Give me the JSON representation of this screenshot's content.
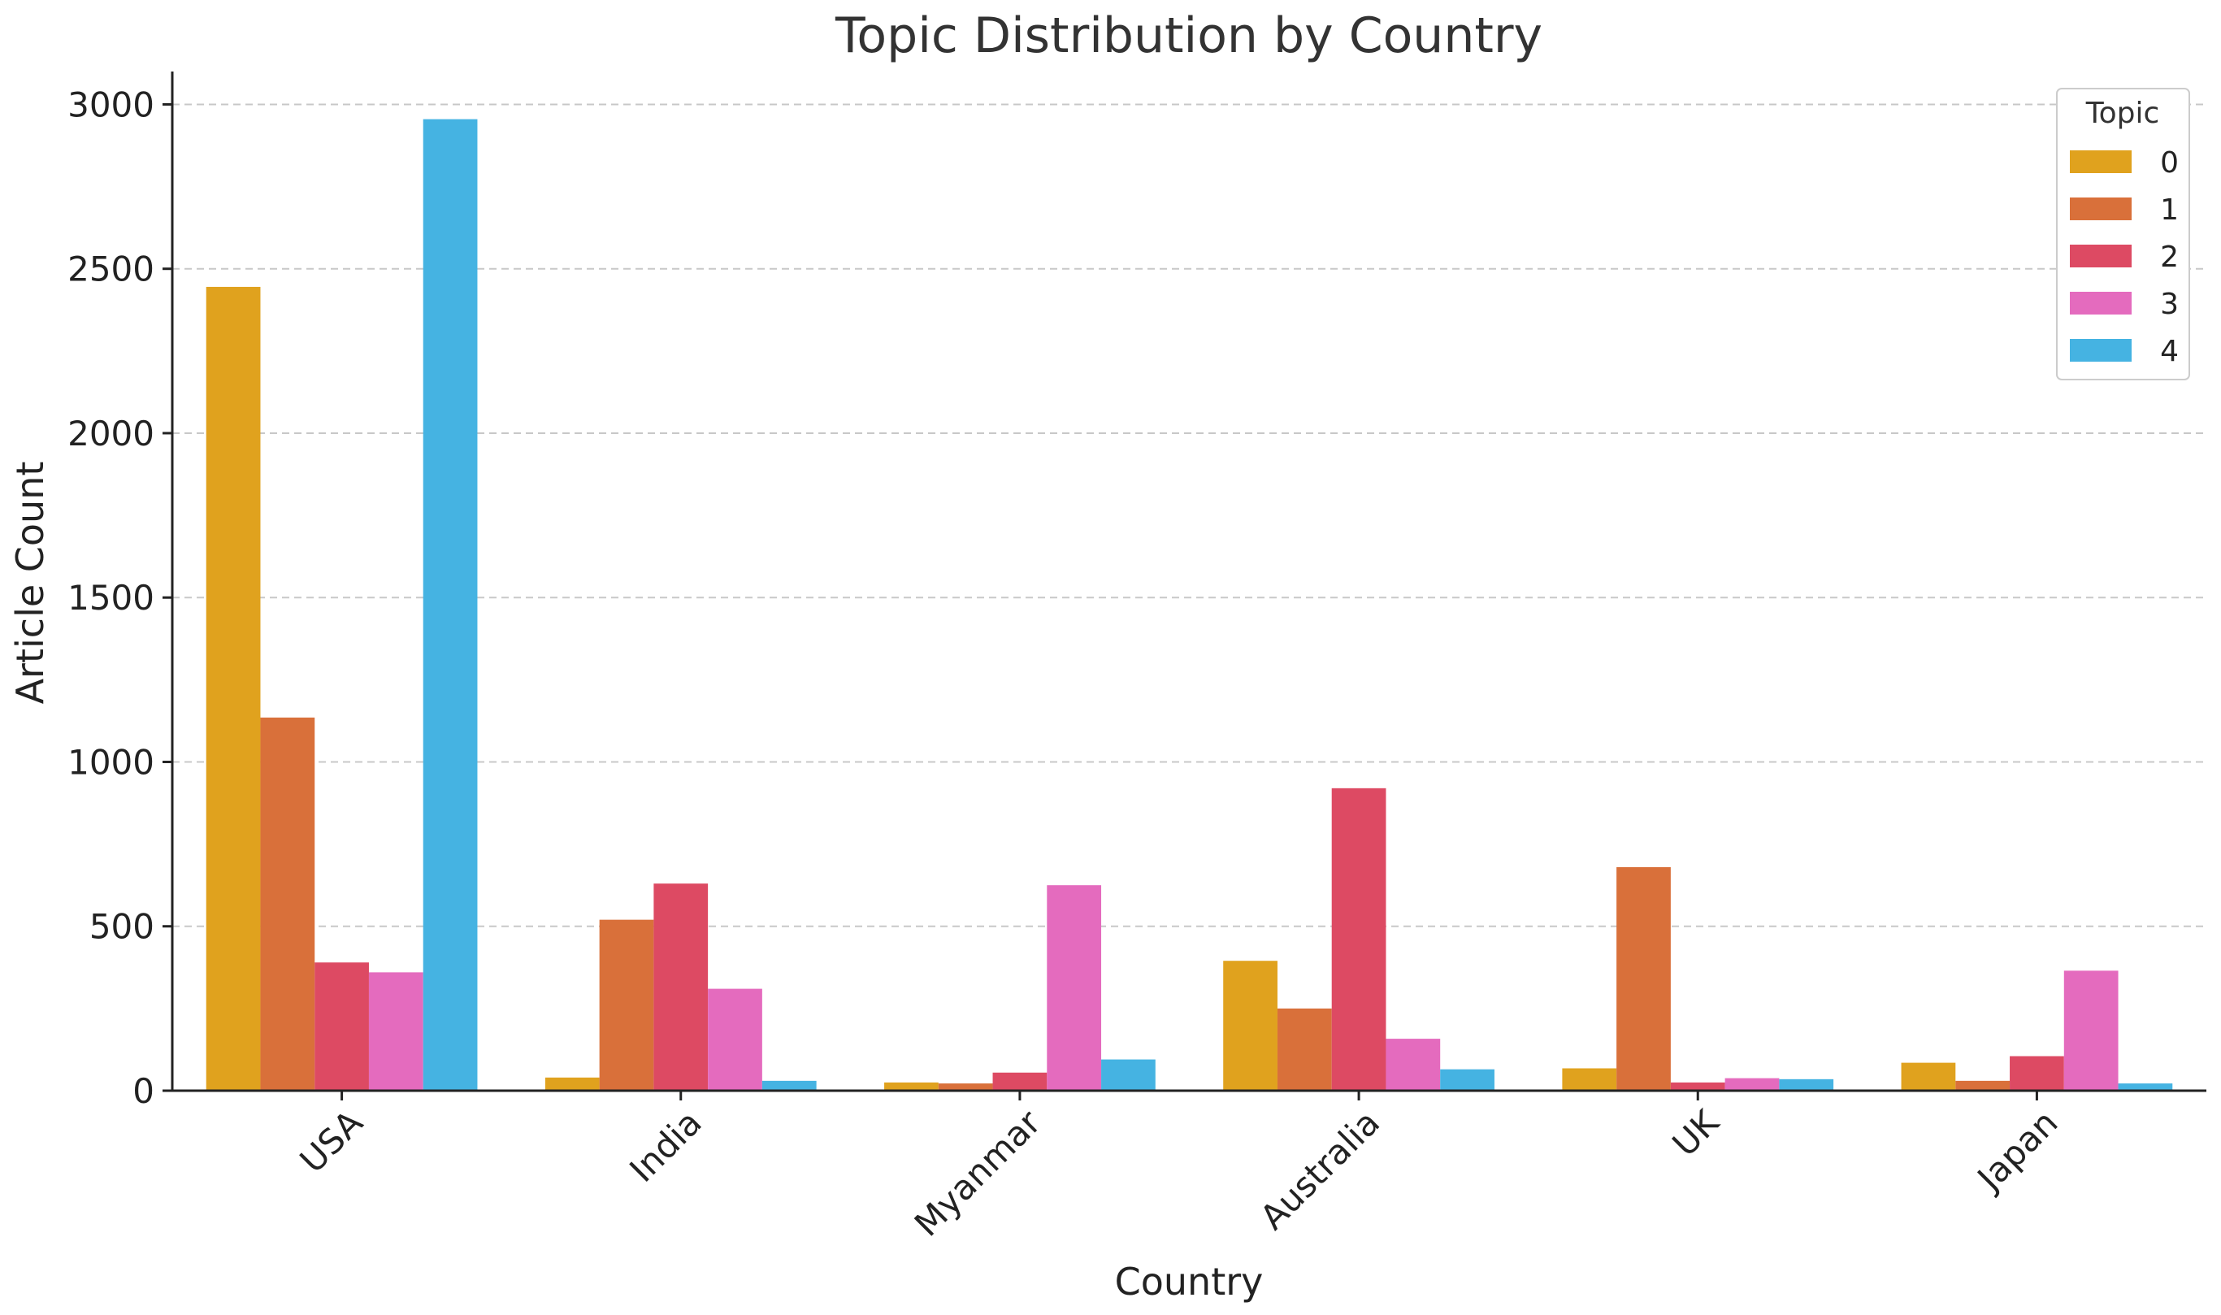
{
  "chart_data": {
    "type": "bar",
    "title": "Topic Distribution by Country",
    "xlabel": "Country",
    "ylabel": "Article Count",
    "categories": [
      "USA",
      "India",
      "Myanmar",
      "Australia",
      "UK",
      "Japan"
    ],
    "ylim": [
      0,
      3100
    ],
    "yticks": [
      0,
      500,
      1000,
      1500,
      2000,
      2500,
      3000
    ],
    "grid": true,
    "legend": {
      "title": "Topic",
      "placement": "top-right"
    },
    "series": [
      {
        "name": "0",
        "color": "#E0A21E",
        "values": [
          2445,
          40,
          25,
          395,
          68,
          85
        ]
      },
      {
        "name": "1",
        "color": "#D9703A",
        "values": [
          1135,
          520,
          22,
          250,
          680,
          30
        ]
      },
      {
        "name": "2",
        "color": "#DD4A63",
        "values": [
          390,
          630,
          55,
          920,
          25,
          105
        ]
      },
      {
        "name": "3",
        "color": "#E46BBE",
        "values": [
          360,
          310,
          625,
          158,
          38,
          365
        ]
      },
      {
        "name": "4",
        "color": "#45B3E2",
        "values": [
          2955,
          30,
          95,
          65,
          35,
          22
        ]
      }
    ]
  }
}
